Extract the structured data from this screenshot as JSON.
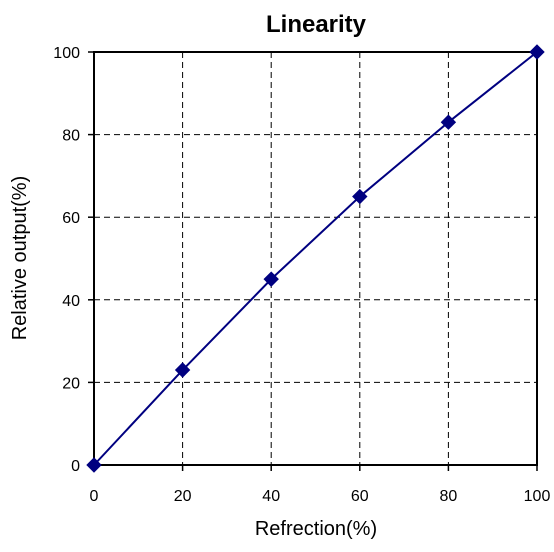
{
  "chart_data": {
    "type": "line",
    "title": "Linearity",
    "xlabel": "Refrection(%)",
    "ylabel": "Relative output(%)",
    "xlim": [
      0,
      100
    ],
    "ylim": [
      0,
      100
    ],
    "x_ticks": [
      0,
      20,
      40,
      60,
      80,
      100
    ],
    "y_ticks": [
      0,
      20,
      40,
      60,
      80,
      100
    ],
    "grid": true,
    "legend": "none",
    "series": [
      {
        "x": [
          0,
          20,
          40,
          60,
          80,
          100
        ],
        "y": [
          0,
          23,
          45,
          65,
          83,
          100
        ],
        "color": "#000080",
        "marker": "diamond"
      }
    ]
  }
}
